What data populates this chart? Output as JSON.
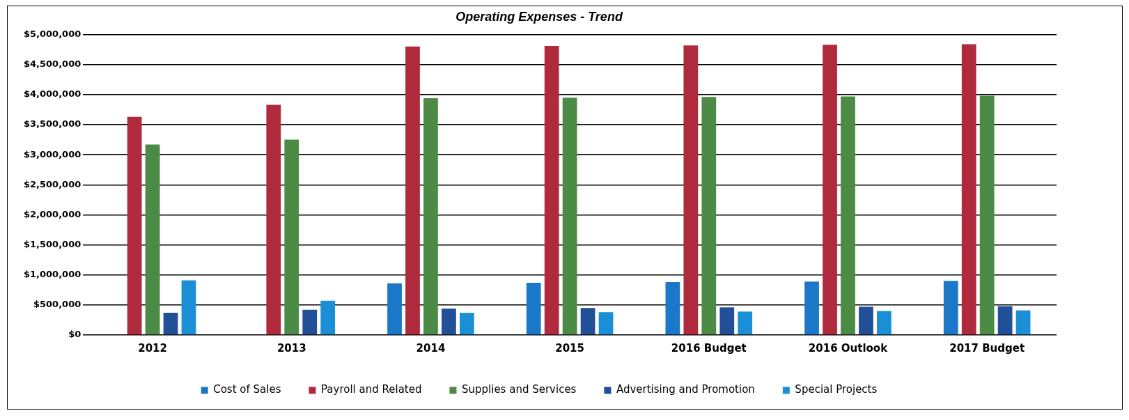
{
  "chart_data": {
    "type": "bar",
    "title": "Operating Expenses - Trend",
    "categories": [
      "2012",
      "2013",
      "2014",
      "2015",
      "2016 Budget",
      "2016 Outlook",
      "2017 Budget"
    ],
    "series": [
      {
        "name": "Cost of Sales",
        "color": "#1b78c8",
        "values": [
          0,
          0,
          860000,
          870000,
          880000,
          890000,
          900000
        ]
      },
      {
        "name": "Payroll and Related",
        "color": "#b02a3e",
        "values": [
          3630000,
          3830000,
          4800000,
          4810000,
          4820000,
          4830000,
          4840000
        ]
      },
      {
        "name": "Supplies and Services",
        "color": "#4b8b45",
        "values": [
          3170000,
          3250000,
          3940000,
          3950000,
          3960000,
          3970000,
          3980000
        ]
      },
      {
        "name": "Advertising and Promotion",
        "color": "#214f98",
        "values": [
          370000,
          420000,
          440000,
          450000,
          460000,
          470000,
          480000
        ]
      },
      {
        "name": "Special Projects",
        "color": "#1b8fd6",
        "values": [
          910000,
          570000,
          370000,
          380000,
          390000,
          400000,
          410000
        ]
      }
    ],
    "ylim": [
      0,
      5000000
    ],
    "yticks": [
      {
        "value": 0,
        "label": "$0"
      },
      {
        "value": 500000,
        "label": "$500,000"
      },
      {
        "value": 1000000,
        "label": "$1,000,000"
      },
      {
        "value": 1500000,
        "label": "$1,500,000"
      },
      {
        "value": 2000000,
        "label": "$2,000,000"
      },
      {
        "value": 2500000,
        "label": "$2,500,000"
      },
      {
        "value": 3000000,
        "label": "$3,000,000"
      },
      {
        "value": 3500000,
        "label": "$3,500,000"
      },
      {
        "value": 4000000,
        "label": "$4,000,000"
      },
      {
        "value": 4500000,
        "label": "$4,500,000"
      },
      {
        "value": 5000000,
        "label": "$5,000,000"
      }
    ],
    "grid": "y",
    "legend": "bottom"
  }
}
